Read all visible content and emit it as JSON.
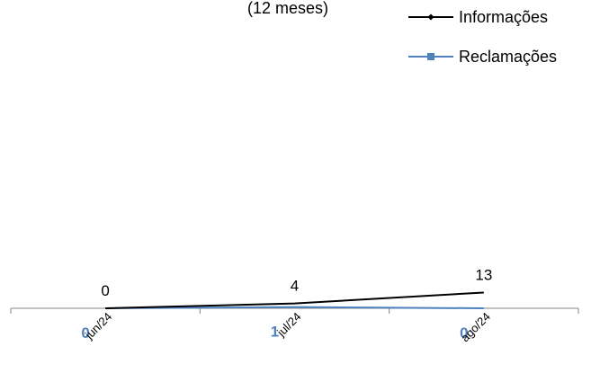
{
  "chart_data": {
    "type": "line",
    "subtitle": "(12 meses)",
    "categories": [
      "jun/24",
      "jul/24",
      "ago/24"
    ],
    "series": [
      {
        "name": "Informações",
        "values": [
          0,
          4,
          13
        ],
        "color": "#000000",
        "marker": "diamond"
      },
      {
        "name": "Reclamações",
        "values": [
          0,
          1,
          0
        ],
        "color": "#4f81bd",
        "marker": "square"
      }
    ],
    "legend_position": "top-right",
    "grid": false
  }
}
